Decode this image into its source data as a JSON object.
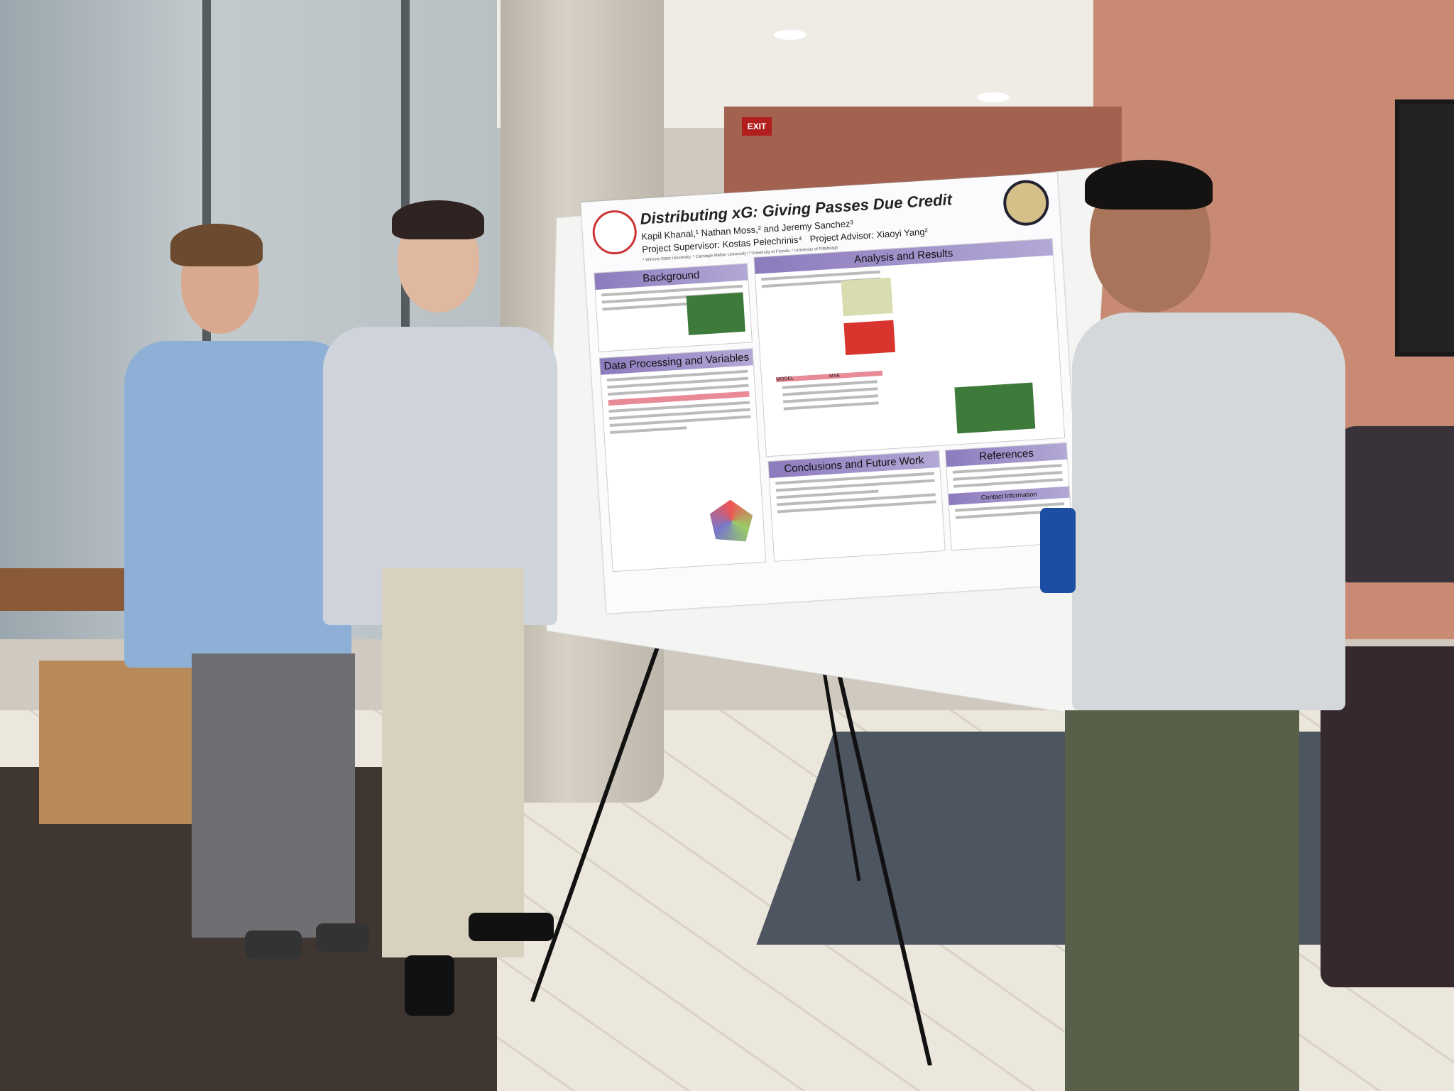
{
  "scene": {
    "exit_sign": "EXIT"
  },
  "poster": {
    "title": "Distributing xG: Giving Passes Due Credit",
    "authors": "Kapil Khanal,¹ Nathan Moss,² and Jeremy Sanchez³",
    "supervisor": "Project Supervisor: Kostas Pelechrinis⁴",
    "advisor": "Project Advisor: Xiaoyi Yang²",
    "affiliations": "¹ Winona State University; ² Carnegie Mellon University; ³ University of Florida; ⁴ University of Pittsburgh",
    "sections": {
      "background": "Background",
      "data_processing": "Data Processing and Variables",
      "analysis": "Analysis and Results",
      "conclusions": "Conclusions and Future Work",
      "references": "References",
      "contact": "Contact Information"
    },
    "table": {
      "headers": [
        "MODEL",
        "MSE"
      ]
    },
    "left_logo": "Carnegie Mellon University seal",
    "right_logo": "University of Pittsburgh seal"
  },
  "colors": {
    "section_header": "#8c7bbd",
    "wall": "#c98a74",
    "can": "#1c4fa3"
  }
}
